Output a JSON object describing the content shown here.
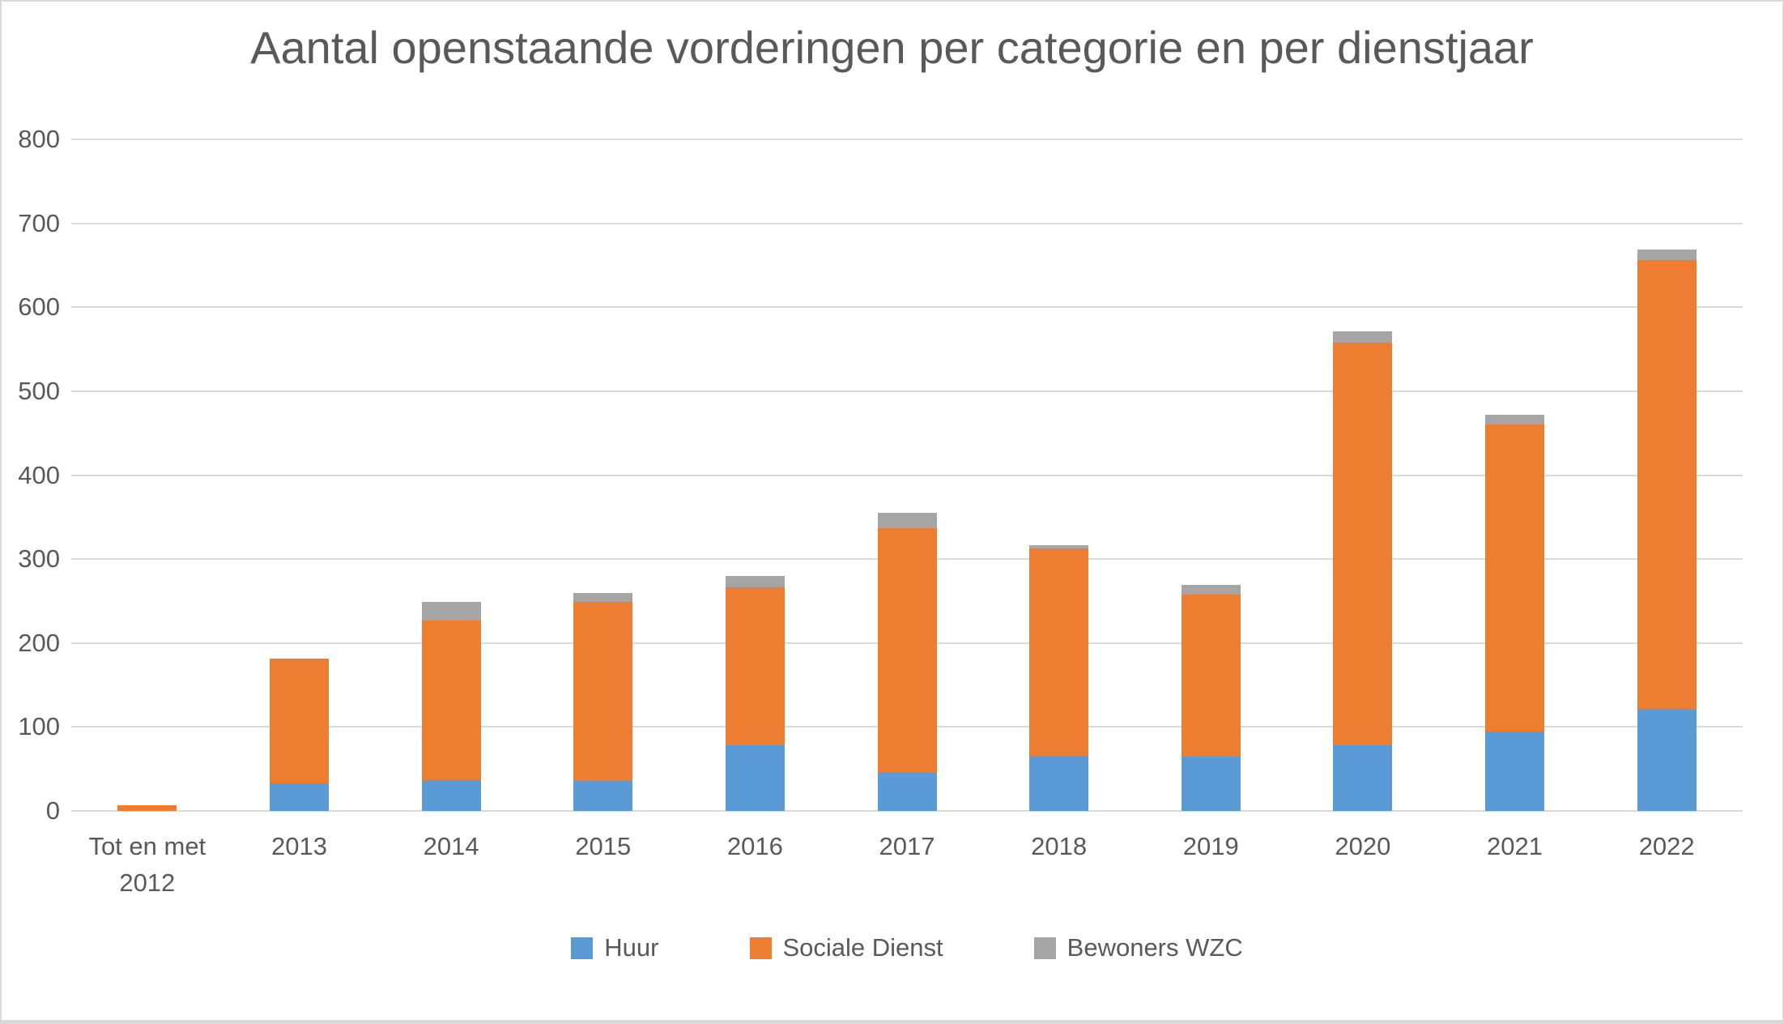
{
  "chart_data": {
    "type": "bar",
    "stacked": true,
    "title": "Aantal openstaande vorderingen per categorie en per dienstjaar",
    "categories": [
      "Tot en met 2012",
      "2013",
      "2014",
      "2015",
      "2016",
      "2017",
      "2018",
      "2019",
      "2020",
      "2021",
      "2022"
    ],
    "series": [
      {
        "name": "Huur",
        "color": "#5B9BD5",
        "values": [
          0,
          33,
          37,
          36,
          78,
          45,
          66,
          65,
          78,
          95,
          122
        ]
      },
      {
        "name": "Sociale Dienst",
        "color": "#ED7D31",
        "values": [
          7,
          148,
          190,
          213,
          188,
          292,
          247,
          193,
          480,
          365,
          534
        ]
      },
      {
        "name": "Bewoners WZC",
        "color": "#A5A5A5",
        "values": [
          0,
          0,
          22,
          11,
          14,
          18,
          4,
          11,
          13,
          12,
          13
        ]
      }
    ],
    "totals": [
      7,
      181,
      249,
      260,
      280,
      355,
      317,
      269,
      571,
      472,
      669
    ],
    "xlabel": "",
    "ylabel": "",
    "y_ticks": [
      0,
      100,
      200,
      300,
      400,
      500,
      600,
      700,
      800
    ],
    "ylim": [
      0,
      800
    ],
    "grid": true,
    "legend_position": "bottom",
    "text_color": "#595959",
    "grid_color": "#D9D9D9",
    "background": "#FFFFFF",
    "border_color": "#D9D9D9"
  }
}
